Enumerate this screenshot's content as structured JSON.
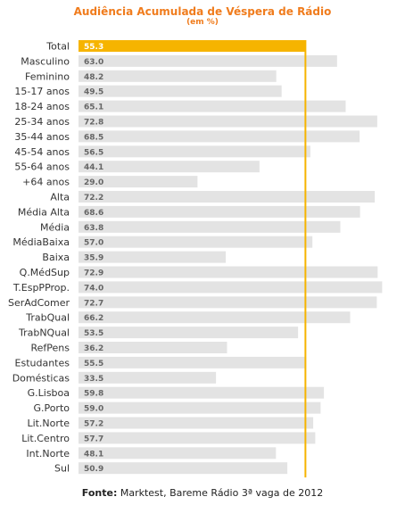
{
  "chart_data": {
    "type": "bar",
    "orientation": "horizontal",
    "title": "Audiência Acumulada de Véspera de Rádio",
    "subtitle": "(em %)",
    "categories": [
      "Total",
      "Masculino",
      "Feminino",
      "15-17 anos",
      "18-24 anos",
      "25-34 anos",
      "35-44 anos",
      "45-54 anos",
      "55-64 anos",
      "+64 anos",
      "Alta",
      "Média Alta",
      "Média",
      "MédiaBaixa",
      "Baixa",
      "Q.MédSup",
      "T.EspPProp.",
      "SerAdComer",
      "TrabQual",
      "TrabNQual",
      "RefPens",
      "Estudantes",
      "Domésticas",
      "G.Lisboa",
      "G.Porto",
      "Lit.Norte",
      "Lit.Centro",
      "Int.Norte",
      "Sul"
    ],
    "values": [
      55.3,
      63.0,
      48.2,
      49.5,
      65.1,
      72.8,
      68.5,
      56.5,
      44.1,
      29.0,
      72.2,
      68.6,
      63.8,
      57.0,
      35.9,
      72.9,
      74.0,
      72.7,
      66.2,
      53.5,
      36.2,
      55.5,
      33.5,
      59.8,
      59.0,
      57.2,
      57.7,
      48.1,
      50.9
    ],
    "value_labels": [
      "55.3",
      "63.0",
      "48.2",
      "49.5",
      "65.1",
      "72.8",
      "68.5",
      "56.5",
      "44.1",
      "29.0",
      "72.2",
      "68.6",
      "63.8",
      "57.0",
      "35.9",
      "72.9",
      "74.0",
      "72.7",
      "66.2",
      "53.5",
      "36.2",
      "55.5",
      "33.5",
      "59.8",
      "59.0",
      "57.2",
      "57.7",
      "48.1",
      "50.9"
    ],
    "reference_value": 55.3,
    "highlight_index": 0,
    "xlim": [
      0,
      74
    ],
    "colors": {
      "bar": "#e3e3e3",
      "highlight_bar": "#f6b400",
      "reference_line": "#f6b400",
      "title": "#f07c1d",
      "value_label": "#666666",
      "highlight_value_label": "#ffffff",
      "category_label": "#333333"
    }
  },
  "footer": {
    "label": "Fonte:",
    "text": " Marktest, Bareme Rádio 3ª vaga de 2012"
  }
}
